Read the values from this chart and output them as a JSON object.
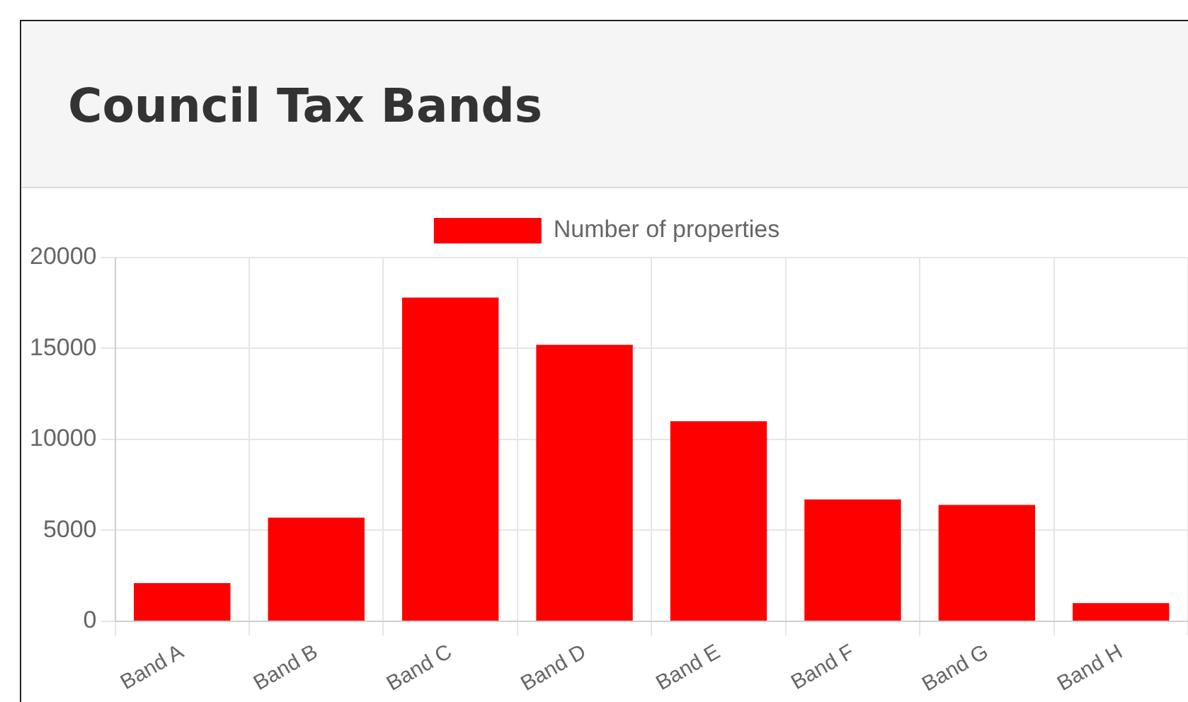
{
  "chart_data": {
    "type": "bar",
    "title": "Council Tax Bands",
    "categories": [
      "Band A",
      "Band B",
      "Band C",
      "Band D",
      "Band E",
      "Band F",
      "Band G",
      "Band H"
    ],
    "series": [
      {
        "name": "Number of properties",
        "color": "#ff0000",
        "values": [
          2100,
          5700,
          17800,
          15200,
          11000,
          6700,
          6400,
          1000
        ]
      }
    ],
    "ylim": [
      0,
      20000
    ],
    "yticks": [
      0,
      5000,
      10000,
      15000,
      20000
    ],
    "grid": true,
    "legend": "top"
  }
}
